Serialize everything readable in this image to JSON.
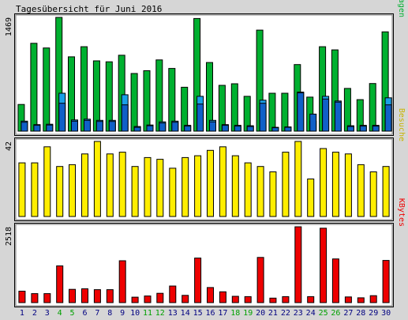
{
  "title": "Tagesübersicht für Juni 2016",
  "colors": {
    "background": "#d6d6d6",
    "panel": "#ffffff",
    "border": "#000000",
    "weekend_label": "#00a000",
    "weekday_label": "#000080",
    "anfragen": "#00b030",
    "dateien": "#1aa0e8",
    "seiten": "#1060c8",
    "besuche": "#ffee00",
    "kbytes": "#ee0000"
  },
  "chart_data": [
    {
      "type": "bar",
      "name": "Anfragen / Dateien / Seiten",
      "y_label": "1469",
      "right_label_parts": [
        {
          "text": "Seiten",
          "color": "#1060c8"
        },
        {
          "text": "/",
          "color": "#000000"
        },
        {
          "text": "Dateien",
          "color": "#1aa0e8"
        },
        {
          "text": "/",
          "color": "#000000"
        },
        {
          "text": "Anfragen",
          "color": "#00b030"
        }
      ],
      "ymax": 1469,
      "categories": [
        "1",
        "2",
        "3",
        "4",
        "5",
        "6",
        "7",
        "8",
        "9",
        "10",
        "11",
        "12",
        "13",
        "14",
        "15",
        "16",
        "17",
        "18",
        "19",
        "20",
        "21",
        "22",
        "23",
        "24",
        "25",
        "26",
        "27",
        "28",
        "29",
        "30"
      ],
      "series": [
        {
          "name": "Anfragen",
          "values": [
            345,
            1134,
            1074,
            1469,
            960,
            1091,
            908,
            896,
            980,
            745,
            780,
            920,
            810,
            567,
            1455,
            886,
            592,
            612,
            450,
            1305,
            490,
            490,
            860,
            440,
            1091,
            1050,
            552,
            407,
            615,
            1282
          ]
        },
        {
          "name": "Dateien",
          "values": [
            130,
            85,
            90,
            490,
            145,
            155,
            140,
            140,
            470,
            60,
            80,
            120,
            130,
            75,
            450,
            140,
            85,
            75,
            70,
            400,
            50,
            55,
            505,
            130,
            450,
            390,
            70,
            75,
            75,
            430
          ]
        },
        {
          "name": "Seiten",
          "values": [
            115,
            75,
            80,
            360,
            130,
            140,
            125,
            125,
            340,
            50,
            70,
            105,
            115,
            65,
            350,
            120,
            75,
            65,
            60,
            360,
            45,
            50,
            495,
            220,
            415,
            375,
            60,
            65,
            65,
            340
          ]
        }
      ]
    },
    {
      "type": "bar",
      "name": "Besuche",
      "y_label": "42",
      "right_label_parts": [
        {
          "text": "Besuche",
          "color": "#c8b400"
        }
      ],
      "ymax": 42,
      "categories": [
        "1",
        "2",
        "3",
        "4",
        "5",
        "6",
        "7",
        "8",
        "9",
        "10",
        "11",
        "12",
        "13",
        "14",
        "15",
        "16",
        "17",
        "18",
        "19",
        "20",
        "21",
        "22",
        "23",
        "24",
        "25",
        "26",
        "27",
        "28",
        "29",
        "30"
      ],
      "series": [
        {
          "name": "Besuche",
          "values": [
            30,
            30,
            39,
            28,
            29,
            35,
            42,
            35,
            36,
            28,
            33,
            32,
            27,
            33,
            34,
            37,
            39,
            34,
            30,
            28,
            25,
            36,
            42,
            21,
            38,
            36,
            35,
            29,
            25,
            28
          ]
        }
      ]
    },
    {
      "type": "bar",
      "name": "KBytes",
      "y_label": "2518",
      "right_label_parts": [
        {
          "text": "KBytes",
          "color": "#ee0000"
        }
      ],
      "ymax": 2518,
      "categories": [
        "1",
        "2",
        "3",
        "4",
        "5",
        "6",
        "7",
        "8",
        "9",
        "10",
        "11",
        "12",
        "13",
        "14",
        "15",
        "16",
        "17",
        "18",
        "19",
        "20",
        "21",
        "22",
        "23",
        "24",
        "25",
        "26",
        "27",
        "28",
        "29",
        "30"
      ],
      "series": [
        {
          "name": "KBytes",
          "values": [
            380,
            300,
            300,
            1220,
            440,
            460,
            430,
            430,
            1390,
            180,
            220,
            310,
            550,
            240,
            1480,
            500,
            360,
            210,
            200,
            1500,
            150,
            200,
            2518,
            200,
            2470,
            1450,
            190,
            160,
            230,
            1400
          ]
        }
      ]
    }
  ],
  "x_labels": [
    {
      "label": "1",
      "weekend": false
    },
    {
      "label": "2",
      "weekend": false
    },
    {
      "label": "3",
      "weekend": false
    },
    {
      "label": "4",
      "weekend": true
    },
    {
      "label": "5",
      "weekend": true
    },
    {
      "label": "6",
      "weekend": false
    },
    {
      "label": "7",
      "weekend": false
    },
    {
      "label": "8",
      "weekend": false
    },
    {
      "label": "9",
      "weekend": false
    },
    {
      "label": "10",
      "weekend": false
    },
    {
      "label": "11",
      "weekend": true
    },
    {
      "label": "12",
      "weekend": true
    },
    {
      "label": "13",
      "weekend": false
    },
    {
      "label": "14",
      "weekend": false
    },
    {
      "label": "15",
      "weekend": false
    },
    {
      "label": "16",
      "weekend": false
    },
    {
      "label": "17",
      "weekend": false
    },
    {
      "label": "18",
      "weekend": true
    },
    {
      "label": "19",
      "weekend": true
    },
    {
      "label": "20",
      "weekend": false
    },
    {
      "label": "21",
      "weekend": false
    },
    {
      "label": "22",
      "weekend": false
    },
    {
      "label": "23",
      "weekend": false
    },
    {
      "label": "24",
      "weekend": false
    },
    {
      "label": "25",
      "weekend": true
    },
    {
      "label": "26",
      "weekend": true
    },
    {
      "label": "27",
      "weekend": false
    },
    {
      "label": "28",
      "weekend": false
    },
    {
      "label": "29",
      "weekend": false
    },
    {
      "label": "30",
      "weekend": false
    }
  ]
}
